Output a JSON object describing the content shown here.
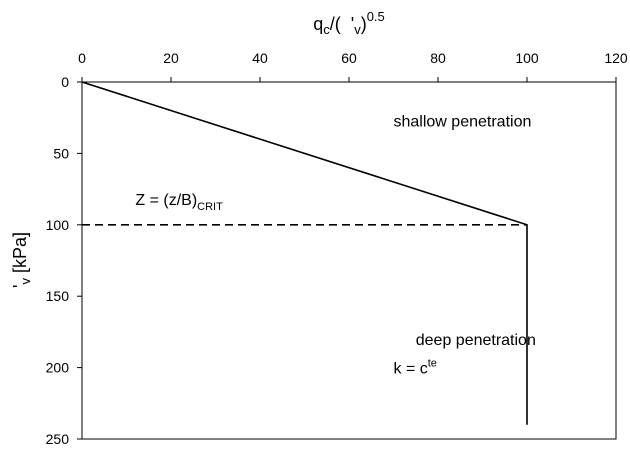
{
  "chart_data": {
    "type": "line",
    "x_axis": {
      "position": "top",
      "label_parts": [
        "q",
        "c",
        "/(",
        "'",
        "v",
        ")",
        "0.5"
      ],
      "ticks": [
        "0",
        "20",
        "40",
        "60",
        "80",
        "100",
        "120"
      ],
      "range": [
        0,
        120
      ]
    },
    "y_axis": {
      "inverted": true,
      "label_parts": [
        "'",
        "v",
        " [kPa]"
      ],
      "ticks": [
        "0",
        "50",
        "100",
        "150",
        "200",
        "250"
      ],
      "range": [
        0,
        250
      ]
    },
    "series": [
      {
        "style": "solid",
        "points": [
          [
            0,
            0
          ],
          [
            100,
            100
          ],
          [
            100,
            240
          ]
        ]
      },
      {
        "style": "dashed",
        "points": [
          [
            0,
            100
          ],
          [
            100,
            100
          ]
        ]
      }
    ],
    "annotations": [
      {
        "id": "shallow",
        "text": "shallow penetration",
        "x": 70,
        "y": 31
      },
      {
        "id": "crit",
        "parts": [
          "Z = (z/B)",
          "CRIT"
        ],
        "x": 12,
        "y": 86
      },
      {
        "id": "deep",
        "text": "deep penetration",
        "x": 75,
        "y": 184
      },
      {
        "id": "k",
        "parts": [
          "k = c",
          "te"
        ],
        "x": 70,
        "y": 204
      }
    ],
    "grid": false,
    "legend": "none"
  }
}
